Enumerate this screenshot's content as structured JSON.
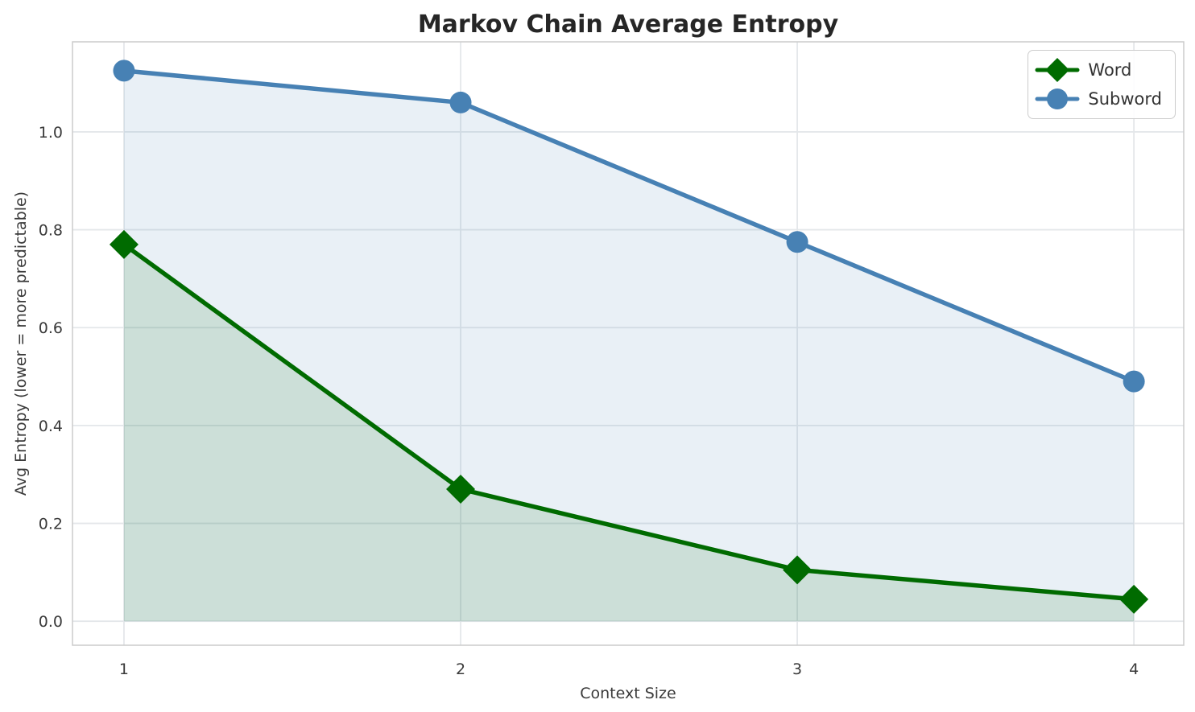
{
  "chart_data": {
    "type": "line",
    "title": "Markov Chain Average Entropy",
    "xlabel": "Context Size",
    "ylabel": "Avg Entropy (lower = more predictable)",
    "x": [
      1,
      2,
      3,
      4
    ],
    "series": [
      {
        "name": "Word",
        "values": [
          0.77,
          0.27,
          0.105,
          0.045
        ],
        "color": "#006b00",
        "marker": "diamond"
      },
      {
        "name": "Subword",
        "values": [
          1.125,
          1.06,
          0.775,
          0.49
        ],
        "color": "#4781b4",
        "marker": "circle"
      }
    ],
    "xticks": [
      "1",
      "2",
      "3",
      "4"
    ],
    "xtick_values": [
      1,
      2,
      3,
      4
    ],
    "yticks": [
      "0.0",
      "0.2",
      "0.4",
      "0.6",
      "0.8",
      "1.0"
    ],
    "ytick_values": [
      0.0,
      0.2,
      0.4,
      0.6,
      0.8,
      1.0
    ],
    "xlim": [
      0.847,
      4.148
    ],
    "ylim": [
      -0.049,
      1.184
    ],
    "grid": true,
    "area_fill_baseline": 0,
    "fill_alpha": 0.12,
    "legend_position": "upper right",
    "grid_color": "#e4e7ea",
    "spine_color": "#cccccc",
    "tick_color": "#3a3a3a",
    "title_color": "#262626"
  }
}
